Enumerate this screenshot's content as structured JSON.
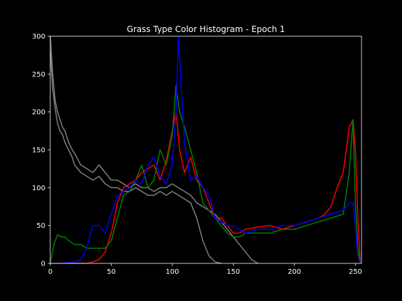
{
  "chart_data": {
    "type": "line",
    "title": "Grass Type Color Histogram - Epoch 1",
    "xlabel": "",
    "ylabel": "",
    "xlim": [
      0,
      255
    ],
    "ylim": [
      0,
      300
    ],
    "xticks": [
      0,
      50,
      100,
      150,
      200,
      250
    ],
    "yticks": [
      0,
      50,
      100,
      150,
      200,
      250,
      300
    ],
    "grid": false,
    "legend": "none",
    "colors": {
      "background": "#000000",
      "axes": "#ffffff",
      "text": "#ffffff"
    },
    "series": [
      {
        "color": "#808080",
        "x": [
          0,
          2,
          4,
          6,
          8,
          10,
          12,
          15,
          18,
          20,
          25,
          30,
          35,
          40,
          45,
          50,
          55,
          60,
          65,
          70,
          75,
          80,
          85,
          90,
          95,
          100,
          105,
          110,
          115,
          120,
          125,
          130,
          135,
          140,
          145,
          150,
          155,
          160,
          165,
          170
        ],
        "y": [
          300,
          250,
          215,
          200,
          190,
          180,
          175,
          160,
          150,
          145,
          130,
          125,
          120,
          130,
          120,
          110,
          110,
          105,
          100,
          105,
          100,
          100,
          95,
          100,
          100,
          105,
          100,
          95,
          90,
          80,
          75,
          70,
          65,
          55,
          45,
          35,
          25,
          15,
          5,
          0
        ]
      },
      {
        "color": "#808080",
        "x": [
          0,
          2,
          4,
          6,
          8,
          10,
          12,
          15,
          18,
          20,
          25,
          30,
          35,
          40,
          45,
          50,
          55,
          60,
          65,
          70,
          75,
          80,
          85,
          90,
          95,
          100,
          105,
          110,
          115,
          120,
          125,
          130,
          135,
          140
        ],
        "y": [
          280,
          230,
          205,
          185,
          175,
          170,
          160,
          150,
          140,
          130,
          120,
          115,
          110,
          115,
          105,
          100,
          100,
          95,
          95,
          100,
          95,
          90,
          90,
          95,
          90,
          95,
          90,
          85,
          80,
          60,
          30,
          10,
          2,
          0
        ]
      },
      {
        "color": "#ff0000",
        "x": [
          0,
          10,
          20,
          30,
          35,
          40,
          45,
          50,
          55,
          60,
          65,
          70,
          75,
          80,
          85,
          90,
          95,
          100,
          103,
          106,
          110,
          115,
          120,
          125,
          130,
          135,
          140,
          145,
          150,
          155,
          160,
          170,
          180,
          190,
          200,
          210,
          220,
          225,
          230,
          235,
          240,
          245,
          248,
          250,
          252,
          254
        ],
        "y": [
          0,
          0,
          0,
          0,
          2,
          5,
          15,
          40,
          80,
          100,
          105,
          110,
          120,
          125,
          130,
          110,
          135,
          175,
          200,
          150,
          120,
          140,
          110,
          100,
          80,
          60,
          60,
          50,
          40,
          40,
          45,
          48,
          50,
          45,
          50,
          55,
          60,
          65,
          75,
          100,
          120,
          180,
          190,
          150,
          60,
          0
        ]
      },
      {
        "color": "#008000",
        "x": [
          0,
          3,
          6,
          9,
          12,
          15,
          20,
          25,
          30,
          35,
          40,
          45,
          50,
          55,
          60,
          65,
          70,
          75,
          80,
          85,
          90,
          95,
          100,
          103,
          106,
          110,
          115,
          120,
          125,
          130,
          135,
          140,
          145,
          150,
          155,
          160,
          170,
          180,
          190,
          200,
          210,
          220,
          230,
          240,
          245,
          248,
          250,
          252,
          254
        ],
        "y": [
          0,
          25,
          38,
          35,
          35,
          30,
          25,
          25,
          20,
          20,
          20,
          20,
          30,
          60,
          90,
          95,
          110,
          130,
          100,
          110,
          150,
          130,
          170,
          235,
          200,
          180,
          150,
          120,
          80,
          70,
          60,
          50,
          40,
          35,
          35,
          40,
          40,
          40,
          45,
          45,
          50,
          55,
          60,
          65,
          120,
          190,
          80,
          20,
          0
        ]
      },
      {
        "color": "#0000ff",
        "x": [
          0,
          10,
          20,
          25,
          30,
          33,
          35,
          40,
          45,
          50,
          55,
          60,
          65,
          70,
          75,
          80,
          85,
          90,
          95,
          100,
          103,
          105,
          107,
          110,
          115,
          120,
          125,
          130,
          135,
          140,
          145,
          150,
          155,
          160,
          170,
          180,
          190,
          200,
          210,
          220,
          230,
          240,
          245,
          248,
          250,
          252,
          254
        ],
        "y": [
          0,
          0,
          2,
          5,
          20,
          40,
          50,
          50,
          40,
          65,
          90,
          95,
          100,
          110,
          105,
          130,
          140,
          115,
          105,
          130,
          200,
          300,
          240,
          160,
          110,
          115,
          100,
          90,
          60,
          55,
          50,
          50,
          45,
          40,
          45,
          45,
          50,
          50,
          55,
          60,
          65,
          70,
          80,
          80,
          50,
          10,
          0
        ]
      }
    ]
  }
}
